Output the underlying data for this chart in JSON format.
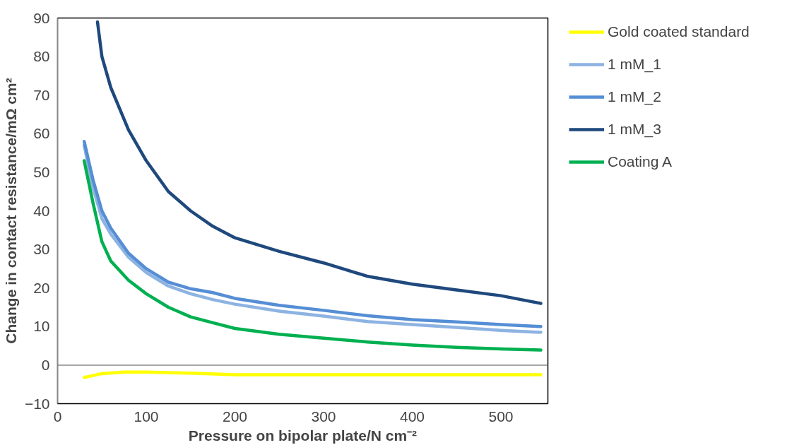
{
  "chart_data": {
    "type": "line",
    "xlabel": "Pressure on bipolar plate/N cm⁻²",
    "ylabel": "Change in contact resistance/mΩ cm²",
    "xlim": [
      0,
      553
    ],
    "ylim": [
      -10,
      90
    ],
    "xticks": [
      0,
      100,
      200,
      300,
      400,
      500
    ],
    "yticks": [
      -10,
      0,
      10,
      20,
      30,
      40,
      50,
      60,
      70,
      80,
      90
    ],
    "grid": false,
    "legend": "right",
    "ref_lines": [
      {
        "axis": "y",
        "value": 0,
        "color": "#888888"
      }
    ],
    "marker": "none",
    "line_style": "solid",
    "series": [
      {
        "name": "Gold coated standard",
        "color": "#ffff00",
        "x": [
          30,
          50,
          75,
          100,
          150,
          200,
          300,
          400,
          545
        ],
        "values": [
          -3.2,
          -2.2,
          -1.8,
          -1.8,
          -2.1,
          -2.5,
          -2.5,
          -2.5,
          -2.5
        ]
      },
      {
        "name": "1 mM_1",
        "color": "#8db3e2",
        "x": [
          30,
          40,
          50,
          60,
          80,
          100,
          125,
          150,
          175,
          200,
          250,
          300,
          350,
          400,
          450,
          500,
          545
        ],
        "values": [
          57,
          46,
          38,
          34,
          28,
          24,
          20.5,
          18.5,
          17,
          15.8,
          14,
          12.7,
          11.3,
          10.5,
          9.8,
          9,
          8.5
        ]
      },
      {
        "name": "1 mM_2",
        "color": "#558ed5",
        "x": [
          30,
          40,
          50,
          60,
          80,
          100,
          125,
          150,
          175,
          200,
          250,
          300,
          350,
          400,
          450,
          500,
          545
        ],
        "values": [
          58,
          48,
          40,
          35.5,
          29,
          25,
          21.5,
          19.8,
          18.8,
          17.3,
          15.5,
          14.2,
          12.8,
          11.8,
          11.2,
          10.5,
          10
        ]
      },
      {
        "name": "1 mM_3",
        "color": "#1f497d",
        "x": [
          45,
          50,
          60,
          80,
          100,
          125,
          150,
          175,
          200,
          250,
          300,
          350,
          400,
          450,
          500,
          545
        ],
        "values": [
          89,
          80,
          72,
          61,
          53,
          45,
          40,
          36,
          33,
          29.5,
          26.5,
          23,
          21,
          19.5,
          18,
          16
        ]
      },
      {
        "name": "Coating A",
        "color": "#00b050",
        "x": [
          30,
          40,
          50,
          60,
          80,
          100,
          125,
          150,
          175,
          200,
          250,
          300,
          350,
          400,
          450,
          500,
          545
        ],
        "values": [
          53,
          42,
          32,
          27,
          22,
          18.5,
          15,
          12.5,
          11,
          9.5,
          8,
          7,
          6,
          5.2,
          4.6,
          4.2,
          3.9
        ]
      }
    ]
  }
}
